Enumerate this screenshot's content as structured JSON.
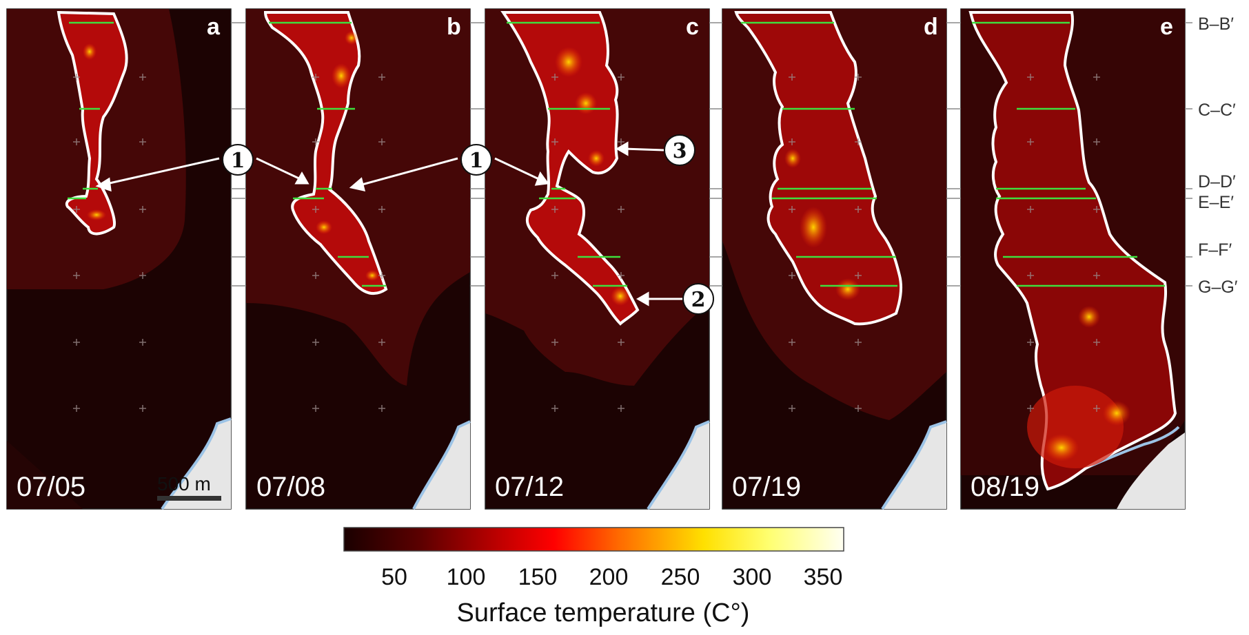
{
  "panels": [
    {
      "letter": "a",
      "date": "07/05"
    },
    {
      "letter": "b",
      "date": "07/08"
    },
    {
      "letter": "c",
      "date": "07/12"
    },
    {
      "letter": "d",
      "date": "07/19"
    },
    {
      "letter": "e",
      "date": "08/19"
    }
  ],
  "cross_sections": [
    "B–B′",
    "C–C′",
    "D–D′",
    "E–E′",
    "F–F′",
    "G–G′"
  ],
  "scale_bar": {
    "label": "500 m"
  },
  "callouts": [
    "1",
    "2",
    "3"
  ],
  "colorbar": {
    "title": "Surface temperature (C°)",
    "ticks": [
      "50",
      "100",
      "150",
      "200",
      "250",
      "300",
      "350"
    ],
    "colors": [
      "#1a0000",
      "#5a0000",
      "#a40000",
      "#ff0000",
      "#ff6a00",
      "#ffd400",
      "#ffff40",
      "#fffff2"
    ]
  }
}
